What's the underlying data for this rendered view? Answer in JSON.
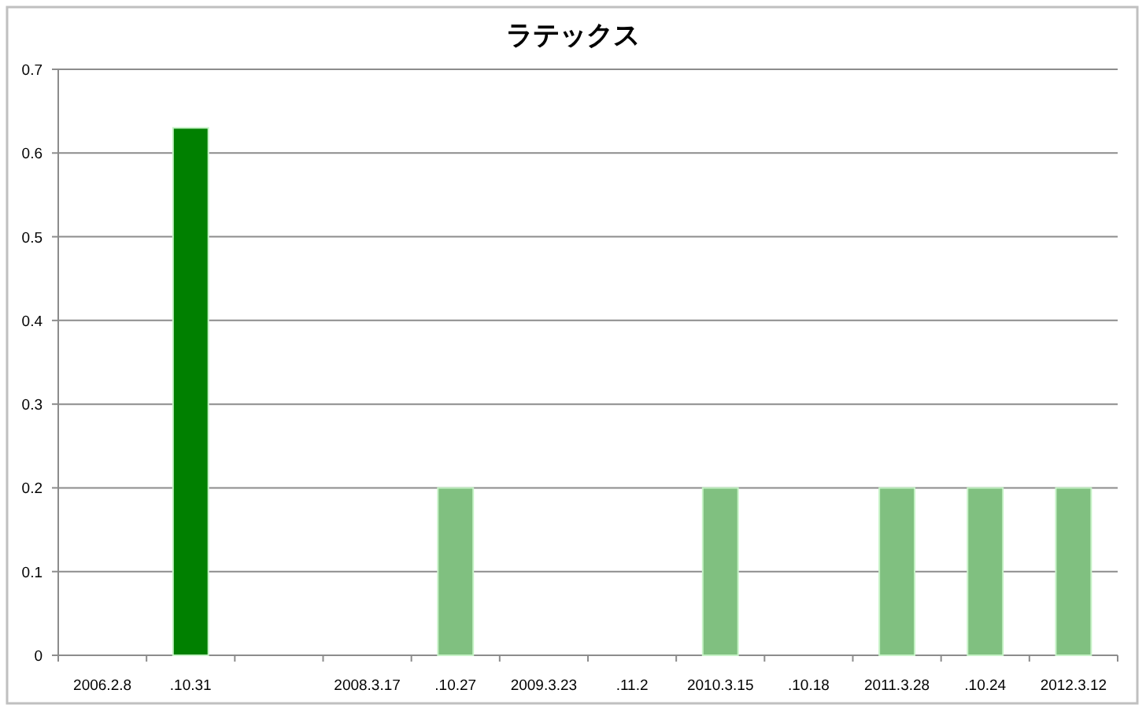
{
  "chart_data": {
    "type": "bar",
    "title": "ラテックス",
    "categories": [
      "2006.2.8",
      ".10.31",
      null,
      "2008.3.17",
      ".10.27",
      "2009.3.23",
      ".11.2",
      "2010.3.15",
      ".10.18",
      "2011.3.28",
      ".10.24",
      "2012.3.12"
    ],
    "values": [
      null,
      0.63,
      null,
      null,
      0.2,
      null,
      null,
      0.2,
      null,
      0.2,
      0.2,
      0.2
    ],
    "colors": [
      null,
      "#008000",
      null,
      null,
      "#80c080",
      null,
      null,
      "#80c080",
      null,
      "#80c080",
      "#80c080",
      "#80c080"
    ],
    "ylim": [
      0,
      0.7
    ],
    "yticks": [
      0,
      0.1,
      0.2,
      0.3,
      0.4,
      0.5,
      0.6,
      0.7
    ],
    "grid": "y"
  }
}
